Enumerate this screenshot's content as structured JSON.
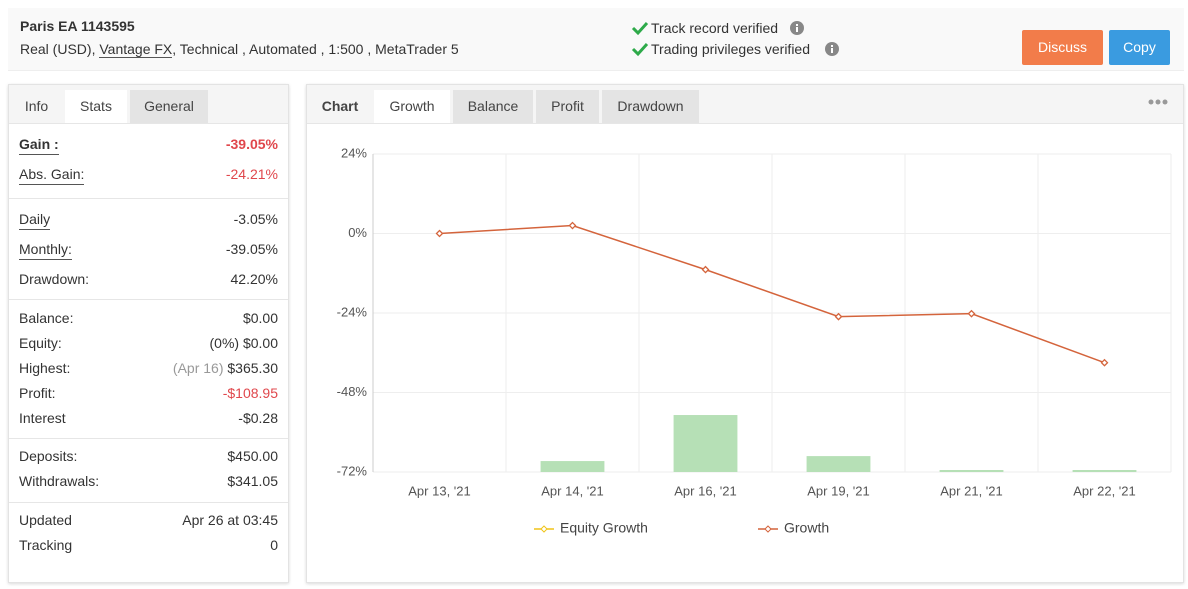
{
  "header": {
    "title": "Paris EA 1143595",
    "account": "Real (USD),",
    "broker": "Vantage FX",
    "details": ", Technical , Automated , 1:500 , MetaTrader 5",
    "verifications": [
      "Track record verified",
      "Trading privileges verified"
    ],
    "buttons": [
      "Discuss",
      "Copy"
    ]
  },
  "stats_tabs": [
    "Info",
    "Stats",
    "General"
  ],
  "stats": {
    "gain": {
      "label": "Gain :",
      "value": "-39.05%"
    },
    "abs_gain": {
      "label": "Abs. Gain:",
      "value": "-24.21%"
    },
    "daily": {
      "label": "Daily",
      "value": "-3.05%"
    },
    "monthly": {
      "label": "Monthly:",
      "value": "-39.05%"
    },
    "drawdown": {
      "label": "Drawdown:",
      "value": "42.20%"
    },
    "balance": {
      "label": "Balance:",
      "value": "$0.00"
    },
    "equity": {
      "label": "Equity:",
      "value": "(0%) $0.00"
    },
    "highest": {
      "label": "Highest:",
      "note": "(Apr 16)",
      "value": "$365.30"
    },
    "profit": {
      "label": "Profit:",
      "value": "-$108.95"
    },
    "interest": {
      "label": "Interest",
      "value": "-$0.28"
    },
    "deposits": {
      "label": "Deposits:",
      "value": "$450.00"
    },
    "withdrawals": {
      "label": "Withdrawals:",
      "value": "$341.05"
    },
    "updated": {
      "label": "Updated",
      "value": "Apr 26 at 03:45"
    },
    "tracking": {
      "label": "Tracking",
      "value": "0"
    }
  },
  "chart_tabs": [
    "Chart",
    "Growth",
    "Balance",
    "Profit",
    "Drawdown"
  ],
  "chart_data": {
    "type": "line",
    "categories": [
      "Apr 13, '21",
      "Apr 14, '21",
      "Apr 16, '21",
      "Apr 19, '21",
      "Apr 21, '21",
      "Apr 22, '21"
    ],
    "series": [
      {
        "name": "Equity Growth",
        "color": "#f0c419",
        "values": [
          null,
          null,
          null,
          null,
          null,
          null
        ]
      },
      {
        "name": "Growth",
        "color": "#d4643c",
        "values": [
          0,
          2.4,
          -10.9,
          -25.1,
          -24.2,
          -39
        ]
      },
      {
        "type": "bar",
        "color": "#b6e0b6",
        "values": [
          null,
          -68.7,
          -54.8,
          -67.2,
          -71.4,
          -71.4
        ]
      }
    ],
    "ylim": [
      -72,
      24
    ],
    "yticks": [
      {
        "value": -72,
        "label": "-72%"
      },
      {
        "value": -48,
        "label": "-48%"
      },
      {
        "value": -24,
        "label": "-24%"
      },
      {
        "value": 0,
        "label": "0%"
      },
      {
        "value": 24,
        "label": "24%"
      }
    ],
    "grid": true
  }
}
